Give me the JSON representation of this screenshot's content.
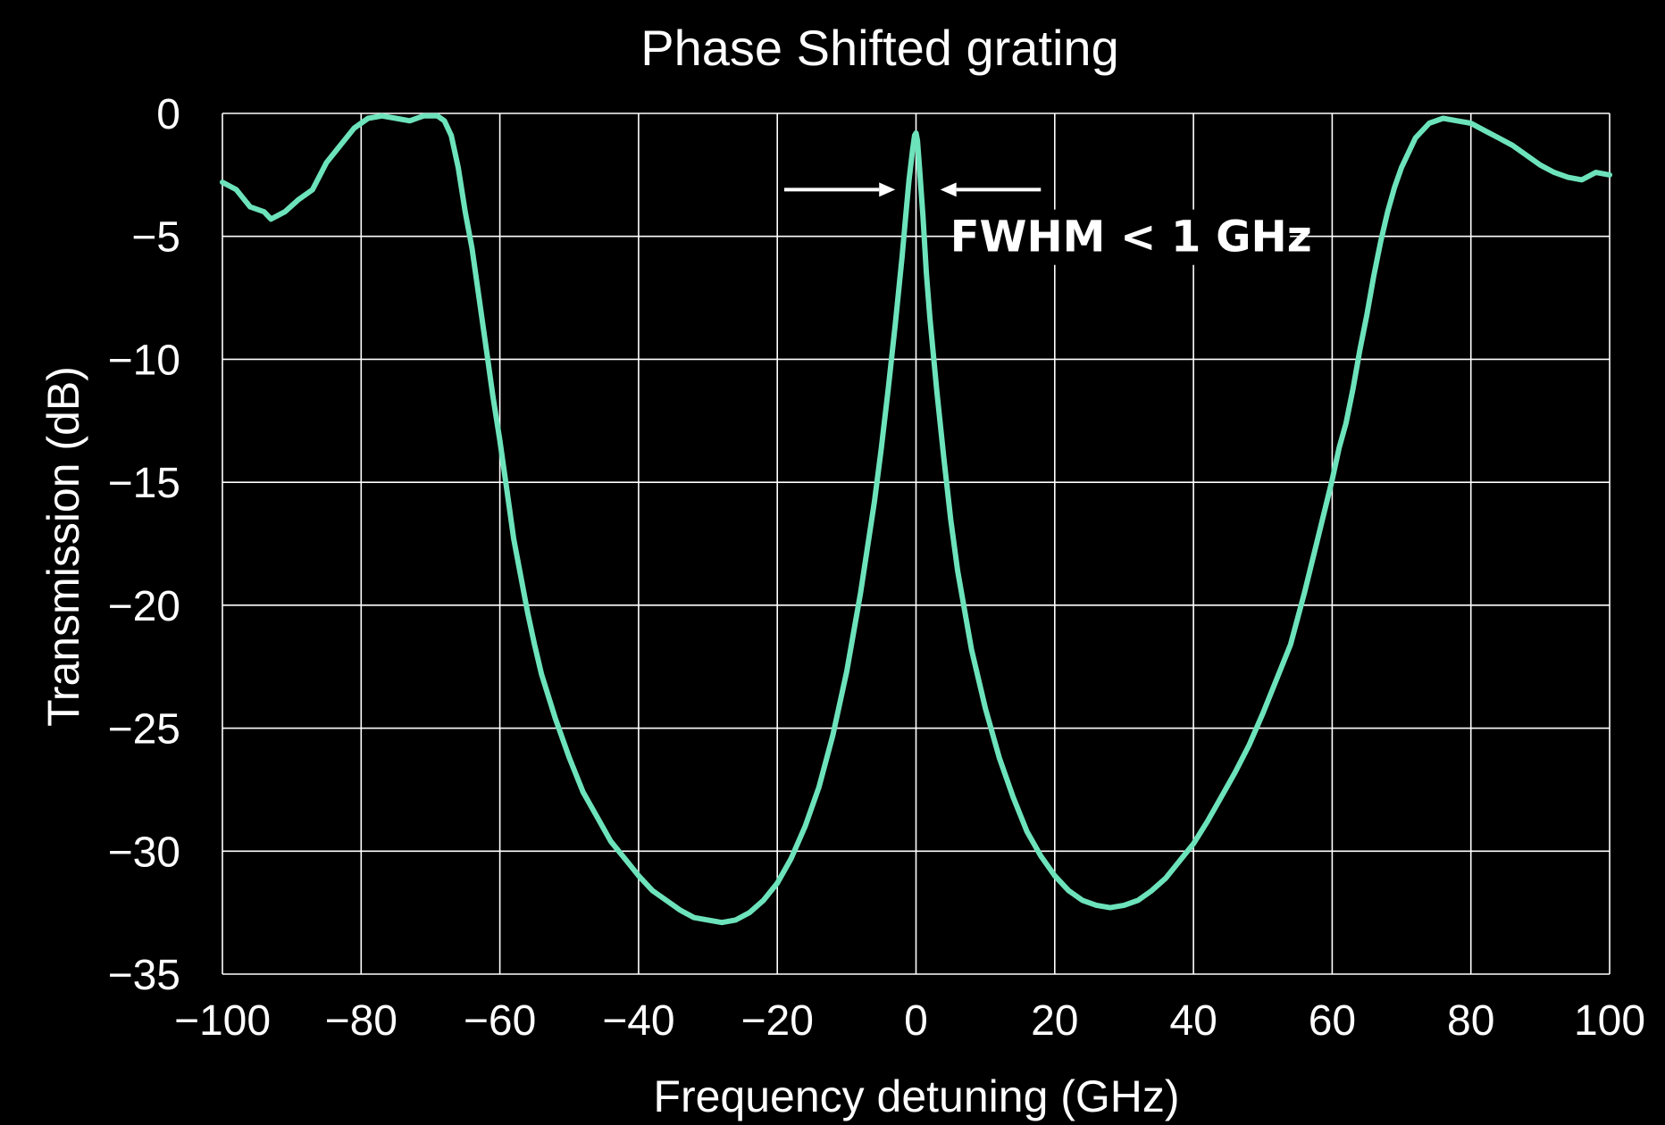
{
  "chart_data": {
    "type": "line",
    "title": "Phase Shifted grating",
    "xlabel": "Frequency detuning (GHz)",
    "ylabel": "Transmission (dB)",
    "xlim": [
      -100,
      100
    ],
    "ylim": [
      -35,
      0
    ],
    "xticks": [
      -100,
      -80,
      -60,
      -40,
      -20,
      0,
      20,
      40,
      60,
      80,
      100
    ],
    "yticks": [
      0,
      -5,
      -10,
      -15,
      -20,
      -25,
      -30,
      -35
    ],
    "xtick_labels": [
      "−100",
      "−80",
      "−60",
      "−40",
      "−20",
      "0",
      "20",
      "40",
      "60",
      "80",
      "100"
    ],
    "ytick_labels": [
      "0",
      "−5",
      "−10",
      "−15",
      "−20",
      "−25",
      "−30",
      "−35"
    ],
    "grid": true,
    "line_color": "#6de3bb",
    "background": "#000000",
    "annotation": {
      "text": "FWHM < 1 GHz",
      "arrow_left_x": [
        -19,
        -3
      ],
      "arrow_right_x": [
        3.5,
        18
      ],
      "arrow_y": -3.1,
      "text_x": 31,
      "text_y": -5
    },
    "series": [
      {
        "x": [
          -100,
          -98,
          -96,
          -94,
          -93,
          -91,
          -89,
          -87,
          -85,
          -83,
          -81,
          -79,
          -77,
          -75,
          -73,
          -71,
          -69,
          -68,
          -67,
          -66,
          -65,
          -64,
          -63,
          -62,
          -61,
          -60,
          -59,
          -58,
          -57,
          -56,
          -55,
          -54,
          -52,
          -50,
          -48,
          -46,
          -44,
          -42,
          -40,
          -38,
          -36,
          -34,
          -32,
          -30,
          -28,
          -26,
          -24,
          -22,
          -20,
          -18,
          -16,
          -14,
          -12,
          -10,
          -8,
          -6,
          -5,
          -4,
          -3,
          -2,
          -1.5,
          -1,
          -0.5,
          -0.2,
          0,
          0.2,
          0.5,
          1,
          1.5,
          2,
          3,
          4,
          5,
          6,
          8,
          10,
          12,
          14,
          16,
          18,
          20,
          22,
          24,
          26,
          28,
          30,
          32,
          34,
          36,
          38,
          40,
          42,
          44,
          46,
          48,
          50,
          52,
          54,
          56,
          58,
          60,
          61,
          62,
          63,
          64,
          65,
          66,
          67,
          68,
          69,
          70,
          72,
          74,
          76,
          78,
          80,
          82,
          84,
          86,
          88,
          90,
          92,
          94,
          96,
          98,
          100
        ],
        "y": [
          -2.8,
          -3.1,
          -3.8,
          -4.0,
          -4.3,
          -4.0,
          -3.5,
          -3.1,
          -2.0,
          -1.3,
          -0.6,
          -0.2,
          -0.1,
          -0.2,
          -0.3,
          -0.1,
          -0.1,
          -0.3,
          -0.9,
          -2.2,
          -4.0,
          -5.5,
          -7.5,
          -9.5,
          -11.5,
          -13.3,
          -15.3,
          -17.3,
          -18.8,
          -20.3,
          -21.6,
          -22.8,
          -24.6,
          -26.2,
          -27.6,
          -28.6,
          -29.6,
          -30.3,
          -31.0,
          -31.6,
          -32.0,
          -32.4,
          -32.7,
          -32.8,
          -32.9,
          -32.8,
          -32.5,
          -32.0,
          -31.3,
          -30.3,
          -29.0,
          -27.4,
          -25.3,
          -22.7,
          -19.5,
          -15.8,
          -13.6,
          -11.2,
          -8.6,
          -5.8,
          -4.2,
          -2.7,
          -1.5,
          -0.9,
          -0.8,
          -1.1,
          -2.2,
          -4.2,
          -6.5,
          -8.3,
          -11.3,
          -14.0,
          -16.5,
          -18.6,
          -21.8,
          -24.2,
          -26.2,
          -27.8,
          -29.2,
          -30.2,
          -31.0,
          -31.6,
          -32.0,
          -32.2,
          -32.3,
          -32.2,
          -32.0,
          -31.6,
          -31.1,
          -30.4,
          -29.7,
          -28.8,
          -27.8,
          -26.8,
          -25.7,
          -24.4,
          -23.0,
          -21.6,
          -19.5,
          -17.2,
          -14.9,
          -13.6,
          -12.6,
          -11.2,
          -9.6,
          -8.2,
          -6.6,
          -5.2,
          -4.0,
          -3.0,
          -2.2,
          -1.0,
          -0.4,
          -0.2,
          -0.3,
          -0.4,
          -0.7,
          -1.0,
          -1.3,
          -1.7,
          -2.1,
          -2.4,
          -2.6,
          -2.7,
          -2.4,
          -2.5
        ]
      }
    ]
  }
}
